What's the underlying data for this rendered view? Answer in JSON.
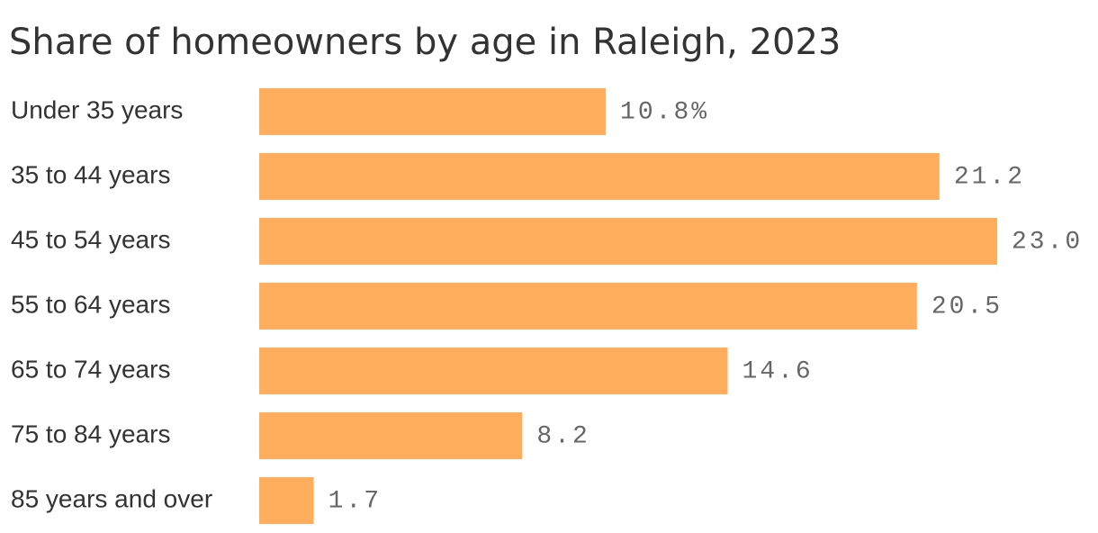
{
  "chart_data": {
    "type": "bar",
    "orientation": "horizontal",
    "title": "Share of homeowners by age in Raleigh, 2023",
    "categories": [
      "Under 35 years",
      "35 to 44 years",
      "45 to 54 years",
      "55 to 64 years",
      "65 to 74 years",
      "75 to 84 years",
      "85 years and over"
    ],
    "values": [
      10.8,
      21.2,
      23.0,
      20.5,
      14.6,
      8.2,
      1.7
    ],
    "value_labels": [
      "10.8%",
      "21.2",
      "23.0",
      "20.5",
      "14.6",
      "8.2",
      "1.7"
    ],
    "color": "#ffae5e"
  }
}
